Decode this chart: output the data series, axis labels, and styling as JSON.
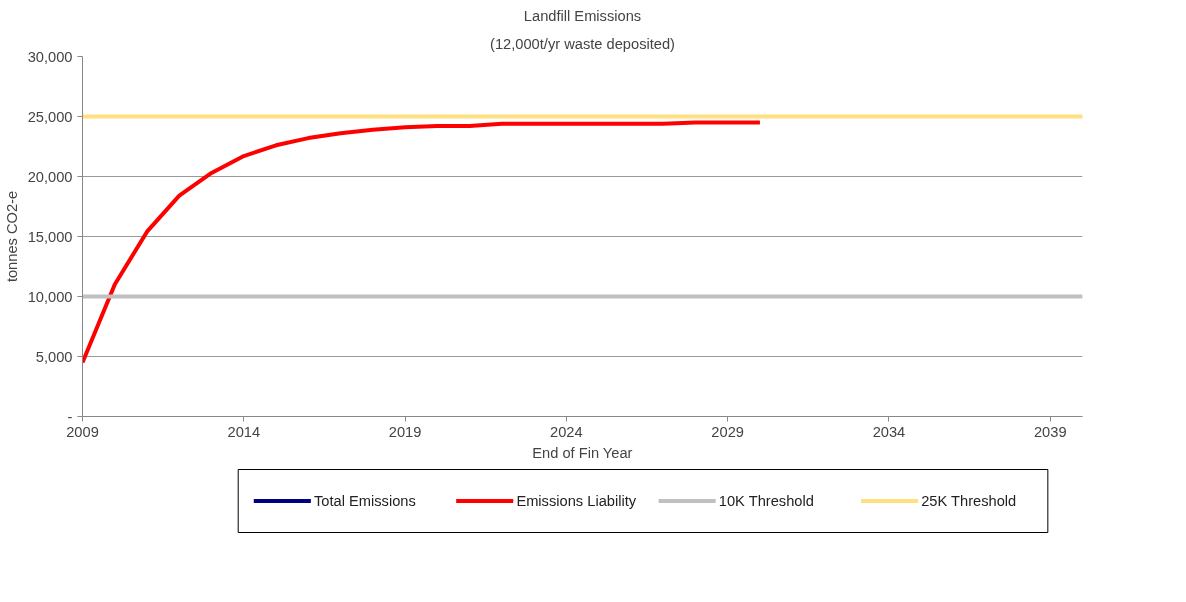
{
  "chart_data": {
    "type": "line",
    "title": "Landfill Emissions",
    "subtitle": "(12,000t/yr waste deposited)",
    "xlabel": "End of Fin Year",
    "ylabel": "tonnes CO2-e",
    "x": [
      2009,
      2010,
      2011,
      2012,
      2013,
      2014,
      2015,
      2016,
      2017,
      2018,
      2019,
      2020,
      2021,
      2022,
      2023,
      2024,
      2025,
      2026,
      2027,
      2028,
      2029,
      2030
    ],
    "series": [
      {
        "name": "Total Emissions",
        "color": "#000080",
        "values": [
          null,
          null,
          null,
          null,
          null,
          null,
          null,
          null,
          null,
          null,
          null,
          null,
          null,
          null,
          null,
          null,
          null,
          null,
          null,
          null,
          null,
          null
        ]
      },
      {
        "name": "Emissions Liability",
        "color": "#ff0000",
        "values": [
          4500,
          11000,
          15400,
          18400,
          20300,
          21700,
          22600,
          23200,
          23600,
          23900,
          24100,
          24200,
          24200,
          24400,
          24400,
          24400,
          24400,
          24400,
          24400,
          24500,
          24500,
          24500
        ]
      }
    ],
    "ref_lines": [
      {
        "axis": "y",
        "value": 10000,
        "label": "10K Threshold",
        "color": "#c0c0c0"
      },
      {
        "axis": "y",
        "value": 25000,
        "label": "25K Threshold",
        "color": "#ffe080"
      }
    ],
    "xlim": [
      2009,
      2040
    ],
    "xticks": [
      2009,
      2014,
      2019,
      2024,
      2029,
      2034,
      2039
    ],
    "ylim": [
      0,
      30000
    ],
    "yticks": [
      {
        "value": 0,
        "label": "-"
      },
      {
        "value": 5000,
        "label": "5,000"
      },
      {
        "value": 10000,
        "label": "10,000"
      },
      {
        "value": 15000,
        "label": "15,000"
      },
      {
        "value": 20000,
        "label": "20,000"
      },
      {
        "value": 25000,
        "label": "25,000"
      },
      {
        "value": 30000,
        "label": "30,000"
      }
    ],
    "grid": "y",
    "legend": "bottom",
    "marker": "none",
    "line_style": "solid"
  }
}
